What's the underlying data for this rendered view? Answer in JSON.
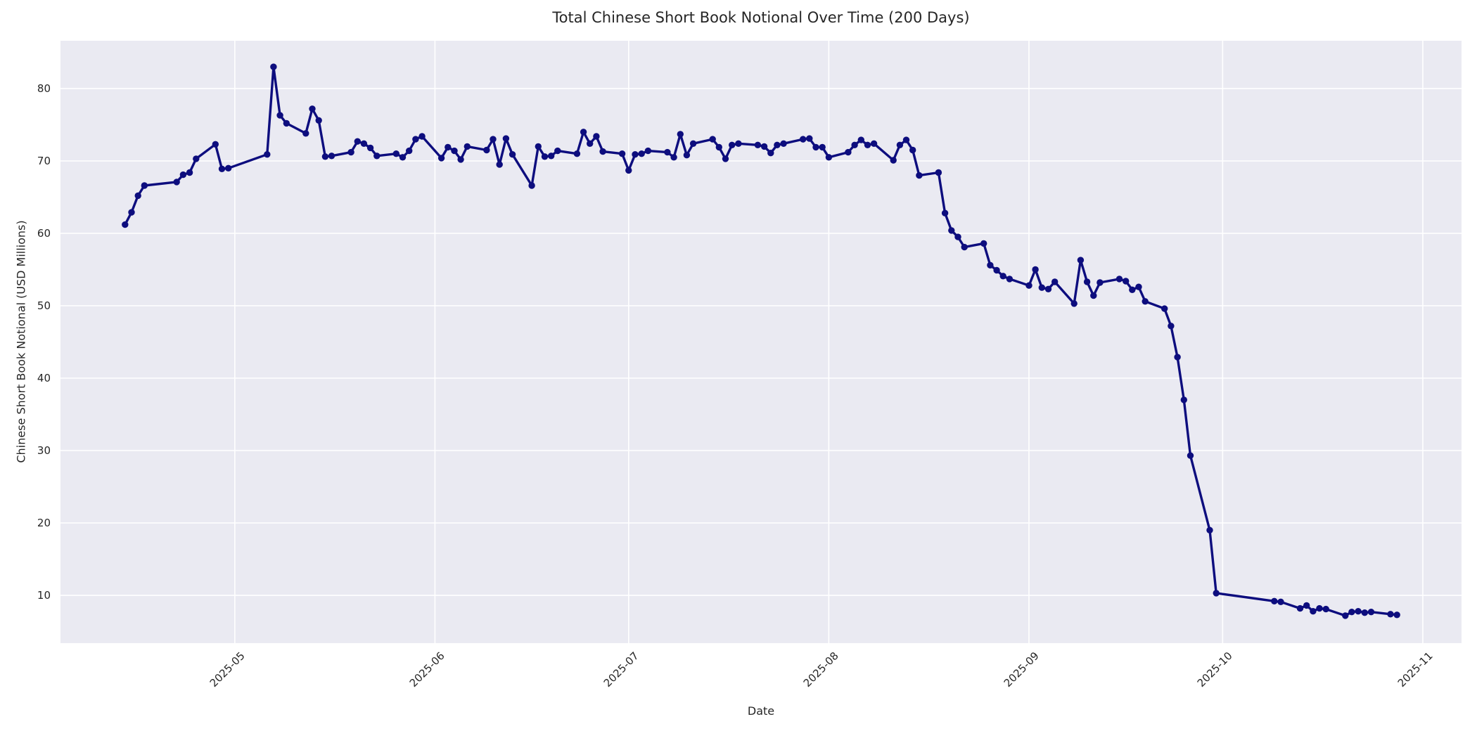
{
  "title": "Total Chinese Short Book Notional Over Time (200 Days)",
  "xlabel": "Date",
  "ylabel": "Chinese Short Book Notional (USD Millions)",
  "colors": {
    "line": "#0d0d7e",
    "marker": "#0d0d7e",
    "plot_background": "#eaeaf2",
    "grid": "#ffffff",
    "text": "#262626",
    "figure_background": "#ffffff"
  },
  "y_ticks": [
    10,
    20,
    30,
    40,
    50,
    60,
    70,
    80
  ],
  "x_ticks": [
    "2025-05",
    "2025-06",
    "2025-07",
    "2025-08",
    "2025-09",
    "2025-10",
    "2025-11"
  ],
  "chart_data": {
    "type": "line",
    "title": "Total Chinese Short Book Notional Over Time (200 Days)",
    "xlabel": "Date",
    "ylabel": "Chinese Short Book Notional (USD Millions)",
    "legend": false,
    "grid": true,
    "marker": "circle",
    "line_color": "#0d0d7e",
    "xlim": [
      "2025-04-04",
      "2025-11-07"
    ],
    "ylim": [
      3.4,
      86.6
    ],
    "points": [
      [
        "2025-04-14",
        61.2
      ],
      [
        "2025-04-15",
        62.9
      ],
      [
        "2025-04-16",
        65.2
      ],
      [
        "2025-04-17",
        66.6
      ],
      [
        "2025-04-22",
        67.1
      ],
      [
        "2025-04-23",
        68.1
      ],
      [
        "2025-04-24",
        68.4
      ],
      [
        "2025-04-25",
        70.3
      ],
      [
        "2025-04-28",
        72.3
      ],
      [
        "2025-04-29",
        68.9
      ],
      [
        "2025-04-30",
        69.0
      ],
      [
        "2025-05-06",
        70.9
      ],
      [
        "2025-05-07",
        83.0
      ],
      [
        "2025-05-08",
        76.3
      ],
      [
        "2025-05-09",
        75.2
      ],
      [
        "2025-05-12",
        73.8
      ],
      [
        "2025-05-13",
        77.2
      ],
      [
        "2025-05-14",
        75.6
      ],
      [
        "2025-05-15",
        70.6
      ],
      [
        "2025-05-16",
        70.7
      ],
      [
        "2025-05-19",
        71.2
      ],
      [
        "2025-05-20",
        72.7
      ],
      [
        "2025-05-21",
        72.4
      ],
      [
        "2025-05-22",
        71.8
      ],
      [
        "2025-05-23",
        70.7
      ],
      [
        "2025-05-26",
        71.0
      ],
      [
        "2025-05-27",
        70.5
      ],
      [
        "2025-05-28",
        71.4
      ],
      [
        "2025-05-29",
        73.0
      ],
      [
        "2025-05-30",
        73.4
      ],
      [
        "2025-06-02",
        70.4
      ],
      [
        "2025-06-03",
        71.9
      ],
      [
        "2025-06-04",
        71.4
      ],
      [
        "2025-06-05",
        70.2
      ],
      [
        "2025-06-06",
        72.0
      ],
      [
        "2025-06-09",
        71.5
      ],
      [
        "2025-06-10",
        73.0
      ],
      [
        "2025-06-11",
        69.5
      ],
      [
        "2025-06-12",
        73.1
      ],
      [
        "2025-06-13",
        70.9
      ],
      [
        "2025-06-16",
        66.6
      ],
      [
        "2025-06-17",
        72.0
      ],
      [
        "2025-06-18",
        70.6
      ],
      [
        "2025-06-19",
        70.7
      ],
      [
        "2025-06-20",
        71.4
      ],
      [
        "2025-06-23",
        71.0
      ],
      [
        "2025-06-24",
        74.0
      ],
      [
        "2025-06-25",
        72.4
      ],
      [
        "2025-06-26",
        73.4
      ],
      [
        "2025-06-27",
        71.3
      ],
      [
        "2025-06-30",
        71.0
      ],
      [
        "2025-07-01",
        68.7
      ],
      [
        "2025-07-02",
        70.9
      ],
      [
        "2025-07-03",
        71.0
      ],
      [
        "2025-07-04",
        71.4
      ],
      [
        "2025-07-07",
        71.2
      ],
      [
        "2025-07-08",
        70.5
      ],
      [
        "2025-07-09",
        73.7
      ],
      [
        "2025-07-10",
        70.8
      ],
      [
        "2025-07-11",
        72.4
      ],
      [
        "2025-07-14",
        73.0
      ],
      [
        "2025-07-15",
        71.9
      ],
      [
        "2025-07-16",
        70.3
      ],
      [
        "2025-07-17",
        72.2
      ],
      [
        "2025-07-18",
        72.4
      ],
      [
        "2025-07-21",
        72.2
      ],
      [
        "2025-07-22",
        72.0
      ],
      [
        "2025-07-23",
        71.1
      ],
      [
        "2025-07-24",
        72.2
      ],
      [
        "2025-07-25",
        72.4
      ],
      [
        "2025-07-28",
        73.0
      ],
      [
        "2025-07-29",
        73.1
      ],
      [
        "2025-07-30",
        71.9
      ],
      [
        "2025-07-31",
        71.9
      ],
      [
        "2025-08-01",
        70.5
      ],
      [
        "2025-08-04",
        71.2
      ],
      [
        "2025-08-05",
        72.2
      ],
      [
        "2025-08-06",
        72.9
      ],
      [
        "2025-08-07",
        72.2
      ],
      [
        "2025-08-08",
        72.4
      ],
      [
        "2025-08-11",
        70.1
      ],
      [
        "2025-08-12",
        72.2
      ],
      [
        "2025-08-13",
        72.9
      ],
      [
        "2025-08-14",
        71.5
      ],
      [
        "2025-08-15",
        68.0
      ],
      [
        "2025-08-18",
        68.4
      ],
      [
        "2025-08-19",
        62.8
      ],
      [
        "2025-08-20",
        60.4
      ],
      [
        "2025-08-21",
        59.5
      ],
      [
        "2025-08-22",
        58.1
      ],
      [
        "2025-08-25",
        58.6
      ],
      [
        "2025-08-26",
        55.6
      ],
      [
        "2025-08-27",
        54.9
      ],
      [
        "2025-08-28",
        54.1
      ],
      [
        "2025-08-29",
        53.7
      ],
      [
        "2025-09-01",
        52.8
      ],
      [
        "2025-09-02",
        55.0
      ],
      [
        "2025-09-03",
        52.5
      ],
      [
        "2025-09-04",
        52.3
      ],
      [
        "2025-09-05",
        53.3
      ],
      [
        "2025-09-08",
        50.3
      ],
      [
        "2025-09-09",
        56.3
      ],
      [
        "2025-09-10",
        53.3
      ],
      [
        "2025-09-11",
        51.4
      ],
      [
        "2025-09-12",
        53.2
      ],
      [
        "2025-09-15",
        53.7
      ],
      [
        "2025-09-16",
        53.4
      ],
      [
        "2025-09-17",
        52.2
      ],
      [
        "2025-09-18",
        52.6
      ],
      [
        "2025-09-19",
        50.6
      ],
      [
        "2025-09-22",
        49.6
      ],
      [
        "2025-09-23",
        47.2
      ],
      [
        "2025-09-24",
        42.9
      ],
      [
        "2025-09-25",
        37.0
      ],
      [
        "2025-09-26",
        29.3
      ],
      [
        "2025-09-29",
        19.0
      ],
      [
        "2025-09-30",
        10.3
      ],
      [
        "2025-10-09",
        9.2
      ],
      [
        "2025-10-10",
        9.1
      ],
      [
        "2025-10-13",
        8.2
      ],
      [
        "2025-10-14",
        8.6
      ],
      [
        "2025-10-15",
        7.8
      ],
      [
        "2025-10-16",
        8.2
      ],
      [
        "2025-10-17",
        8.1
      ],
      [
        "2025-10-20",
        7.2
      ],
      [
        "2025-10-21",
        7.7
      ],
      [
        "2025-10-22",
        7.8
      ],
      [
        "2025-10-23",
        7.6
      ],
      [
        "2025-10-24",
        7.7
      ],
      [
        "2025-10-27",
        7.4
      ],
      [
        "2025-10-28",
        7.3
      ]
    ]
  }
}
